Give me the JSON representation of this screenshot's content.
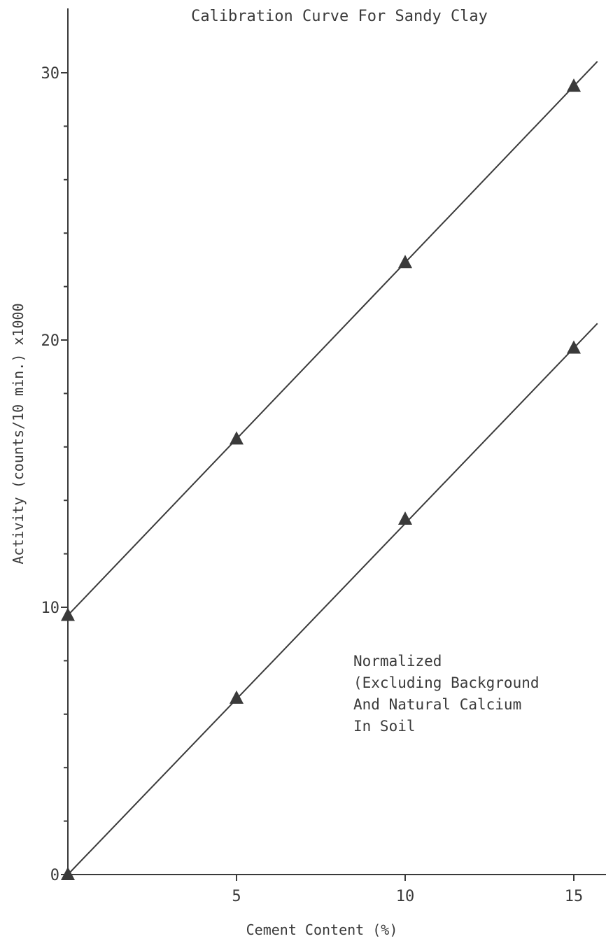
{
  "chart_data": {
    "type": "line",
    "title": "Calibration Curve For Sandy Clay",
    "xlabel": "Cement Content (%)",
    "ylabel": "Activity (counts/10 min.) x1000",
    "xlim": [
      0,
      15.5
    ],
    "ylim": [
      0,
      30
    ],
    "x_ticks": [
      5,
      10,
      15
    ],
    "x_tick_labels": [
      "5",
      "10",
      "15"
    ],
    "y_ticks": [
      0,
      10,
      20,
      30
    ],
    "y_tick_labels": [
      "0",
      "10",
      "20",
      "30"
    ],
    "grid": false,
    "series": [
      {
        "name": "",
        "x": [
          0,
          5,
          10,
          15
        ],
        "values": [
          9.7,
          16.3,
          22.9,
          29.5
        ]
      },
      {
        "name": "",
        "x": [
          0,
          5,
          10,
          15
        ],
        "values": [
          0,
          6.6,
          13.3,
          19.7
        ]
      }
    ],
    "annotation": [
      "Normalized",
      "(Excluding Background",
      "And Natural Calcium",
      "In Soil"
    ]
  },
  "colors": {
    "line": "#3a3a3a",
    "marker": "#3a3a3a"
  }
}
